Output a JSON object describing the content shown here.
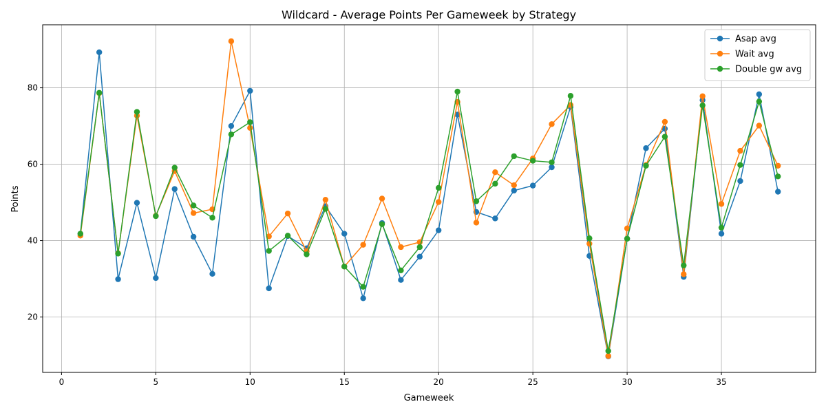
{
  "chart_data": {
    "type": "line",
    "title": "Wildcard - Average Points Per Gameweek by Strategy",
    "xlabel": "Gameweek",
    "ylabel": "Points",
    "xlim": [
      -1,
      40
    ],
    "ylim": [
      5.5,
      96.5
    ],
    "xticks": [
      0,
      5,
      10,
      15,
      20,
      25,
      30,
      35
    ],
    "yticks": [
      20,
      40,
      60,
      80
    ],
    "grid": true,
    "legend": "top-right",
    "x": [
      1,
      2,
      3,
      4,
      5,
      6,
      7,
      8,
      9,
      10,
      11,
      12,
      13,
      14,
      15,
      16,
      17,
      18,
      19,
      20,
      21,
      22,
      23,
      24,
      25,
      26,
      27,
      28,
      29,
      30,
      31,
      32,
      33,
      34,
      35,
      36,
      37,
      38
    ],
    "series": [
      {
        "name": "Asap avg",
        "color": "#1f77b4",
        "values": [
          41.8,
          89.3,
          29.9,
          49.9,
          30.2,
          53.5,
          41.0,
          31.3,
          70.0,
          79.2,
          27.5,
          41.2,
          38.0,
          49.0,
          41.8,
          24.9,
          44.6,
          29.7,
          35.8,
          42.7,
          73.0,
          47.5,
          45.8,
          53.1,
          54.4,
          59.2,
          75.0,
          36.0,
          9.7,
          40.5,
          64.2,
          69.3,
          30.5,
          76.8,
          41.8,
          55.6,
          78.3,
          52.8
        ]
      },
      {
        "name": "Wait avg",
        "color": "#ff7f0e",
        "values": [
          41.3,
          78.6,
          36.7,
          72.7,
          46.5,
          58.2,
          47.2,
          48.2,
          92.2,
          69.5,
          41.1,
          47.1,
          37.2,
          50.7,
          33.2,
          38.9,
          51.0,
          38.3,
          39.6,
          50.1,
          76.3,
          44.7,
          57.9,
          54.5,
          61.5,
          70.5,
          75.5,
          39.2,
          9.8,
          43.2,
          59.8,
          71.1,
          31.2,
          77.8,
          49.6,
          63.5,
          70.1,
          59.6
        ]
      },
      {
        "name": "Double gw avg",
        "color": "#2ca02c",
        "values": [
          41.8,
          78.7,
          36.6,
          73.7,
          46.4,
          59.1,
          49.2,
          46.0,
          67.8,
          71.0,
          37.3,
          41.3,
          36.4,
          48.3,
          33.2,
          27.9,
          44.3,
          32.2,
          38.3,
          53.8,
          79.0,
          50.3,
          54.9,
          62.1,
          60.9,
          60.5,
          77.9,
          40.6,
          11.1,
          40.5,
          59.6,
          67.2,
          33.5,
          75.4,
          43.4,
          59.8,
          76.4,
          56.8
        ]
      }
    ]
  }
}
